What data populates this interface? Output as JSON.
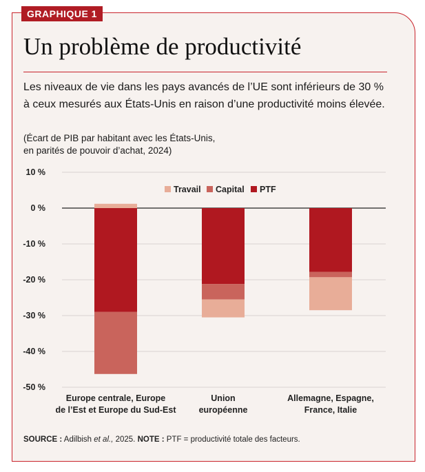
{
  "header": {
    "tag": "GRAPHIQUE 1",
    "title": "Un problème de productivité",
    "subtitle": "Les niveaux de vie dans les pays avancés de l’UE sont inférieurs de 30 % à ceux mesurés aux États-Unis en raison d’une productivité moins élevée.",
    "note_line1": "(Écart de PIB par habitant avec les États-Unis,",
    "note_line2": "en parités de pouvoir d’achat, 2024)"
  },
  "footer": {
    "source_label": "SOURCE :",
    "source_text": " Adilbish ",
    "source_etal": "et al.,",
    "source_year": " 2025. ",
    "note_label": "NOTE :",
    "note_text": " PTF = productivité totale des facteurs."
  },
  "colors": {
    "accent": "#b01c24",
    "travail": "#e8ad98",
    "capital": "#c9645c",
    "ptf": "#b01820",
    "background": "#f7f2ef"
  },
  "chart_data": {
    "type": "bar",
    "stacked": true,
    "categories": [
      [
        "Europe centrale, Europe",
        "de l’Est et Europe du Sud-Est"
      ],
      [
        "Union",
        "européenne"
      ],
      [
        "Allemagne, Espagne,",
        "France, Italie"
      ]
    ],
    "series": [
      {
        "name": "Travail",
        "values": [
          1.2,
          -5.0,
          -9.2
        ]
      },
      {
        "name": "Capital",
        "values": [
          -17.3,
          -4.3,
          -1.5
        ]
      },
      {
        "name": "PTF",
        "values": [
          -29.0,
          -21.2,
          -17.8
        ]
      }
    ],
    "ylim": [
      -50,
      10
    ],
    "yticks": [
      10,
      0,
      -10,
      -20,
      -30,
      -40,
      -50
    ],
    "ytick_labels": [
      "10 %",
      "0 %",
      "-10 %",
      "-20 %",
      "-30 %",
      "-40 %",
      "-50 %"
    ],
    "legend_position": "top-center",
    "grid": true
  }
}
